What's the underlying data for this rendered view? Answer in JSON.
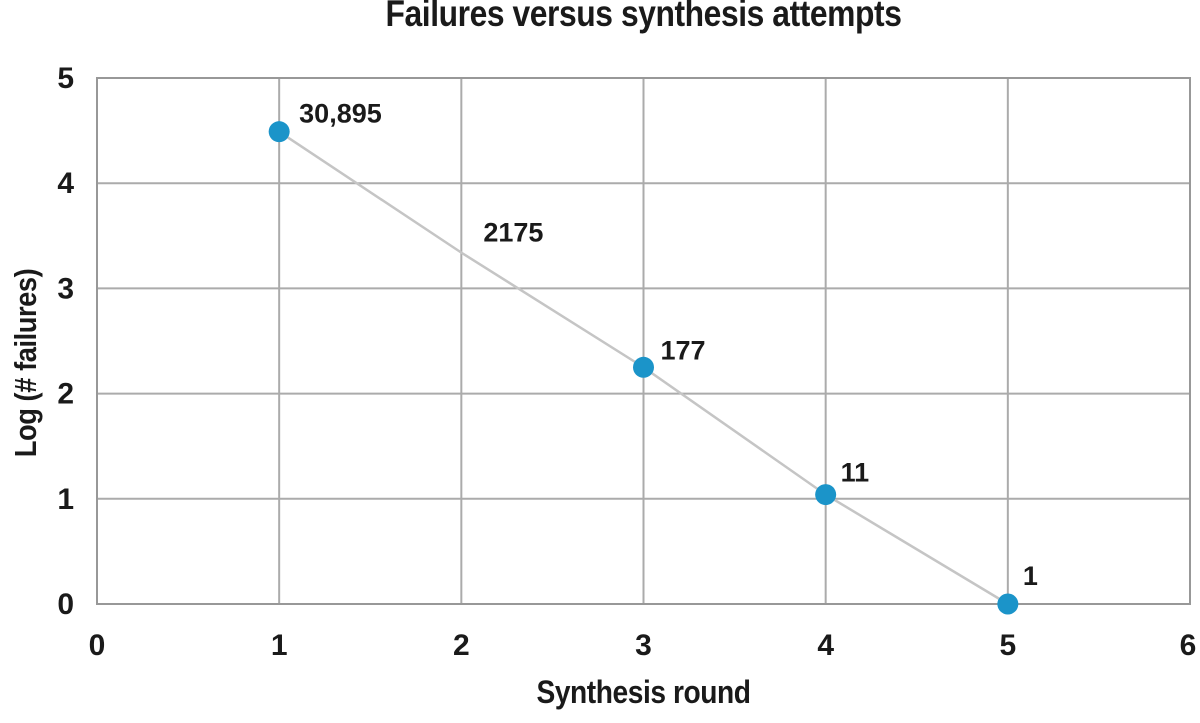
{
  "chart_data": {
    "type": "line",
    "title": "Failures versus synthesis attempts",
    "xlabel": "Synthesis round",
    "ylabel": "Log (# failures)",
    "xlim": [
      0,
      6
    ],
    "ylim": [
      0,
      5
    ],
    "x_ticks": [
      "0",
      "1",
      "2",
      "3",
      "4",
      "5",
      "6"
    ],
    "y_ticks": [
      "0",
      "1",
      "2",
      "3",
      "4",
      "5"
    ],
    "grid": true,
    "legend": false,
    "series_name": "failures",
    "points": [
      {
        "x": 1,
        "failures": 30895,
        "log_value": 4.49,
        "label": "30,895",
        "marker": true,
        "label_offset": [
          20,
          -9
        ]
      },
      {
        "x": 2,
        "failures": 2175,
        "log_value": 3.34,
        "label": "2175",
        "marker": false,
        "label_offset": [
          22,
          -11
        ]
      },
      {
        "x": 3,
        "failures": 177,
        "log_value": 2.25,
        "label": "177",
        "marker": true,
        "label_offset": [
          17,
          -8
        ]
      },
      {
        "x": 4,
        "failures": 11,
        "log_value": 1.04,
        "label": "11",
        "marker": true,
        "label_offset": [
          15,
          -13
        ]
      },
      {
        "x": 5,
        "failures": 1,
        "log_value": 0.0,
        "label": "1",
        "marker": true,
        "label_offset": [
          15,
          -19
        ]
      }
    ],
    "colors": {
      "marker": "#1b94c9",
      "line": "#c5c5c5",
      "grid": "#ababab",
      "frame": "#989898",
      "text": "#1a1a1a",
      "background": "#ffffff"
    }
  }
}
